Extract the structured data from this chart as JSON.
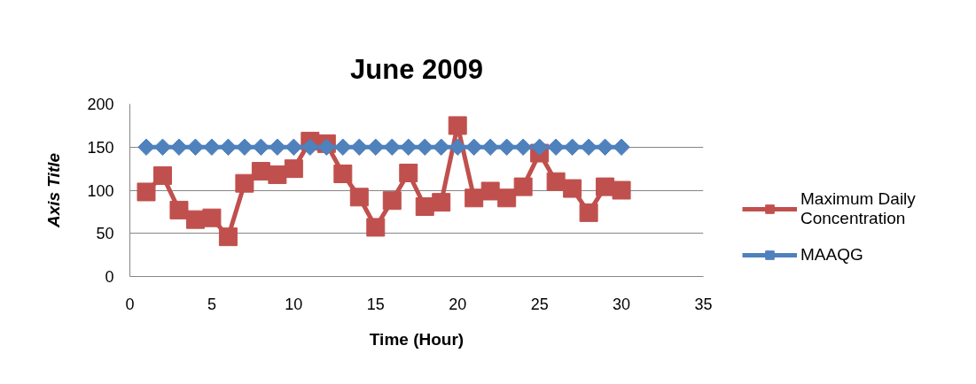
{
  "chart_data": {
    "type": "line",
    "title": "June 2009",
    "xlabel": "Time (Hour)",
    "ylabel": "Axis Title",
    "x": [
      1,
      2,
      3,
      4,
      5,
      6,
      7,
      8,
      9,
      10,
      11,
      12,
      13,
      14,
      15,
      16,
      17,
      18,
      19,
      20,
      21,
      22,
      23,
      24,
      25,
      26,
      27,
      28,
      29,
      30
    ],
    "series": [
      {
        "name": "Maximum Daily Concentration",
        "color": "#c0504d",
        "marker": "square",
        "values": [
          98,
          117,
          77,
          66,
          68,
          46,
          108,
          122,
          118,
          125,
          157,
          154,
          119,
          92,
          57,
          88,
          120,
          81,
          86,
          175,
          91,
          99,
          91,
          104,
          143,
          110,
          102,
          74,
          104,
          100
        ]
      },
      {
        "name": "MAAQG",
        "color": "#4f81bd",
        "marker": "diamond",
        "values": [
          150,
          150,
          150,
          150,
          150,
          150,
          150,
          150,
          150,
          150,
          150,
          150,
          150,
          150,
          150,
          150,
          150,
          150,
          150,
          150,
          150,
          150,
          150,
          150,
          150,
          150,
          150,
          150,
          150,
          150
        ]
      }
    ],
    "xlim": [
      0,
      35
    ],
    "xticks": [
      0,
      5,
      10,
      15,
      20,
      25,
      30,
      35
    ],
    "ylim": [
      0,
      200
    ],
    "yticks": [
      0,
      50,
      100,
      150,
      200
    ],
    "grid": "y",
    "legend": "right",
    "line_style": "solid"
  }
}
